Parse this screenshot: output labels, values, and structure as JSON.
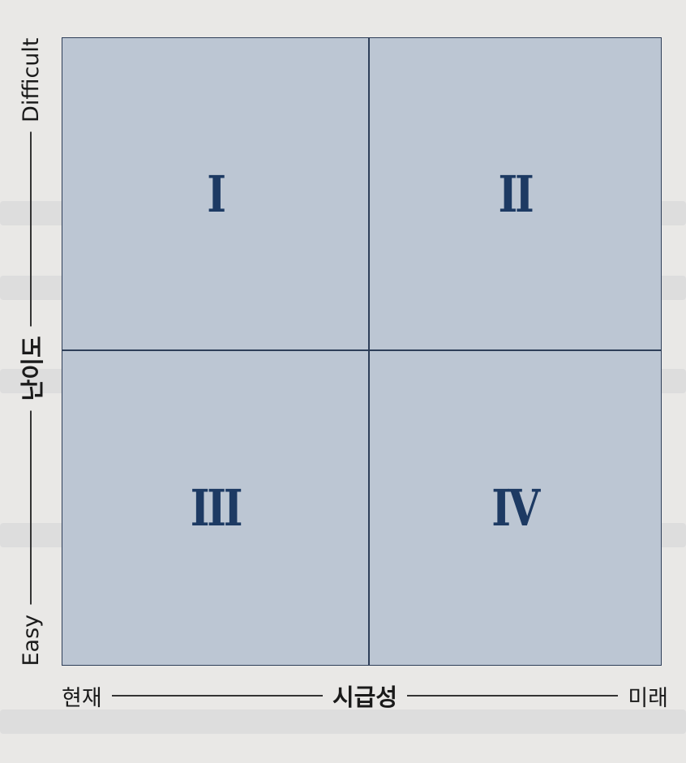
{
  "quadrants": {
    "top_left": "I",
    "top_right": "II",
    "bottom_left": "III",
    "bottom_right": "IV"
  },
  "y_axis": {
    "low": "Easy",
    "title": "난이도",
    "high": "Difficult"
  },
  "x_axis": {
    "low": "현재",
    "title": "시급성",
    "high": "미래"
  },
  "colors": {
    "quadrant_fill": "#bcc6d3",
    "label": "#1d3a63",
    "border": "#2e3e58"
  }
}
